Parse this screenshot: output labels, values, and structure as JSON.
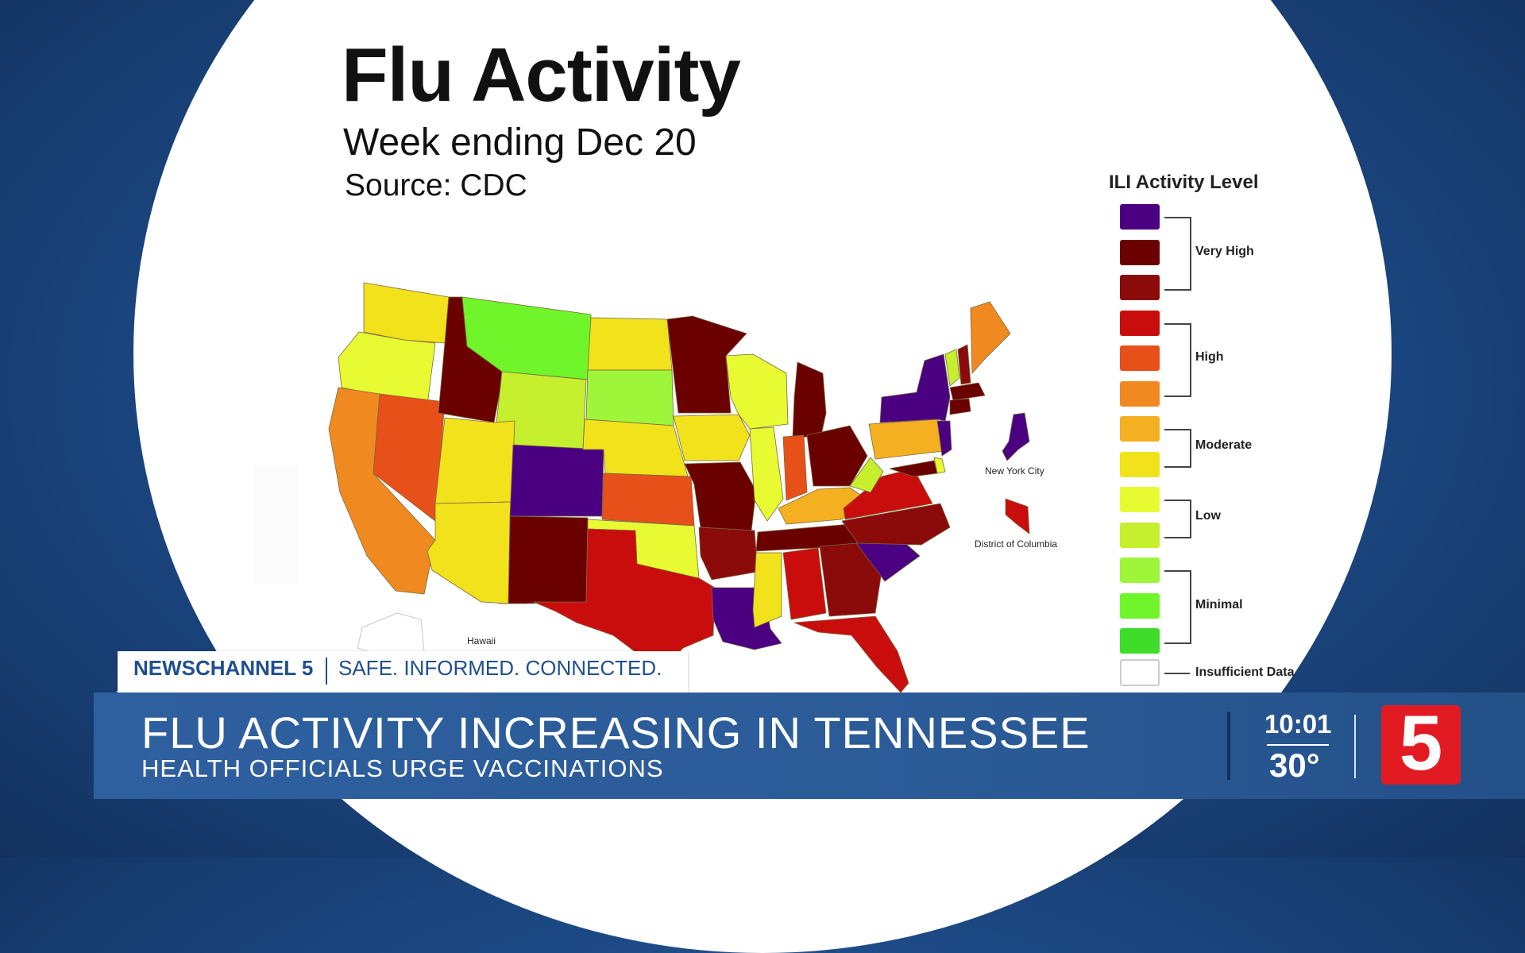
{
  "graphic": {
    "title": "Flu Activity",
    "subtitle": "Week ending Dec 20",
    "source": "Source:  CDC"
  },
  "legend": {
    "title": "ILI Activity Level",
    "swatches": [
      "#4b0082",
      "#6b0000",
      "#8b0a0a",
      "#c90d0d",
      "#e8501a",
      "#f08a20",
      "#f4b020",
      "#f2e21c",
      "#e8fa32",
      "#c6f02e",
      "#9ef53a",
      "#6ff52a",
      "#3fdc2a"
    ],
    "groups": [
      {
        "label": "Very High",
        "from": 0,
        "to": 2
      },
      {
        "label": "High",
        "from": 3,
        "to": 5
      },
      {
        "label": "Moderate",
        "from": 6,
        "to": 7
      },
      {
        "label": "Low",
        "from": 8,
        "to": 9
      },
      {
        "label": "Minimal",
        "from": 10,
        "to": 12
      }
    ],
    "insufficient": "Insufficient Data"
  },
  "map_labels": {
    "nyc": "New York City",
    "dc": "District of Columbia",
    "hawaii": "Hawaii"
  },
  "colors": {
    "purple": "#4b0082",
    "dark_red": "#6b0000",
    "red_dark": "#8b0a0a",
    "red": "#c90d0d",
    "orange_red": "#e8501a",
    "orange": "#f08a20",
    "amber": "#f4b020",
    "yellow": "#f2e21c",
    "yellow_green": "#e8fa32",
    "lime": "#c6f02e",
    "light_green": "#9ef53a",
    "green": "#6ff52a"
  },
  "broadcast": {
    "brand": "NEWSCHANNEL 5",
    "slogan": "SAFE. INFORMED. CONNECTED.",
    "headline": "FLU ACTIVITY INCREASING IN TENNESSEE",
    "subheadline": "HEALTH OFFICIALS URGE VACCINATIONS",
    "time": "10:01",
    "temperature": "30°",
    "logo_digit": "5",
    "accent": "#e21b23"
  }
}
